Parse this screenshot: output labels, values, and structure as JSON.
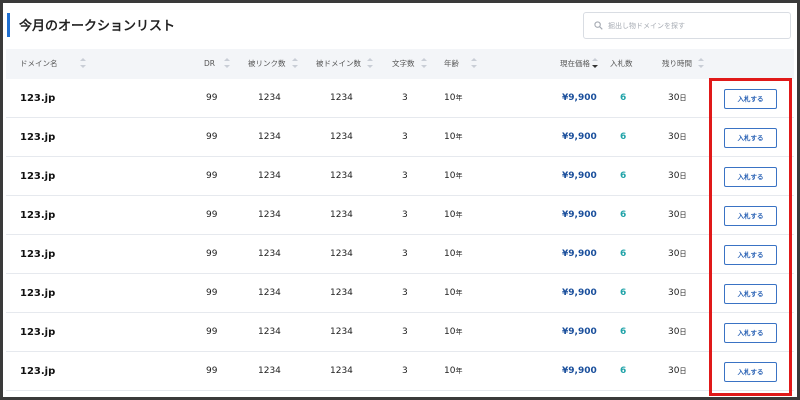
{
  "header": {
    "title": "今月のオークションリスト",
    "accent_color": "#1f6fd1"
  },
  "search": {
    "placeholder": "掘出し物ドメインを探す",
    "value": "",
    "icon": "search-icon"
  },
  "table": {
    "columns": [
      {
        "key": "domain",
        "label": "ドメイン名",
        "sortable": true
      },
      {
        "key": "dr",
        "label": "DR",
        "sortable": true
      },
      {
        "key": "backlinks",
        "label": "被リンク数",
        "sortable": true
      },
      {
        "key": "ref_domains",
        "label": "被ドメイン数",
        "sortable": true
      },
      {
        "key": "chars",
        "label": "文字数",
        "sortable": true
      },
      {
        "key": "age",
        "label": "年齢",
        "sortable": true
      },
      {
        "key": "price",
        "label": "現在価格",
        "sortable": true,
        "sorted": "desc"
      },
      {
        "key": "bids",
        "label": "入札数",
        "sortable": false
      },
      {
        "key": "remaining",
        "label": "残り時間",
        "sortable": true
      }
    ],
    "rows": [
      {
        "domain": "123.jp",
        "dr": "99",
        "backlinks": "1234",
        "ref_domains": "1234",
        "chars": "3",
        "age": "10",
        "age_unit": "年",
        "price": "¥9,900",
        "bids": "6",
        "remaining": "30",
        "remaining_unit": "日",
        "action": "入札する"
      },
      {
        "domain": "123.jp",
        "dr": "99",
        "backlinks": "1234",
        "ref_domains": "1234",
        "chars": "3",
        "age": "10",
        "age_unit": "年",
        "price": "¥9,900",
        "bids": "6",
        "remaining": "30",
        "remaining_unit": "日",
        "action": "入札する"
      },
      {
        "domain": "123.jp",
        "dr": "99",
        "backlinks": "1234",
        "ref_domains": "1234",
        "chars": "3",
        "age": "10",
        "age_unit": "年",
        "price": "¥9,900",
        "bids": "6",
        "remaining": "30",
        "remaining_unit": "日",
        "action": "入札する"
      },
      {
        "domain": "123.jp",
        "dr": "99",
        "backlinks": "1234",
        "ref_domains": "1234",
        "chars": "3",
        "age": "10",
        "age_unit": "年",
        "price": "¥9,900",
        "bids": "6",
        "remaining": "30",
        "remaining_unit": "日",
        "action": "入札する"
      },
      {
        "domain": "123.jp",
        "dr": "99",
        "backlinks": "1234",
        "ref_domains": "1234",
        "chars": "3",
        "age": "10",
        "age_unit": "年",
        "price": "¥9,900",
        "bids": "6",
        "remaining": "30",
        "remaining_unit": "日",
        "action": "入札する"
      },
      {
        "domain": "123.jp",
        "dr": "99",
        "backlinks": "1234",
        "ref_domains": "1234",
        "chars": "3",
        "age": "10",
        "age_unit": "年",
        "price": "¥9,900",
        "bids": "6",
        "remaining": "30",
        "remaining_unit": "日",
        "action": "入札する"
      },
      {
        "domain": "123.jp",
        "dr": "99",
        "backlinks": "1234",
        "ref_domains": "1234",
        "chars": "3",
        "age": "10",
        "age_unit": "年",
        "price": "¥9,900",
        "bids": "6",
        "remaining": "30",
        "remaining_unit": "日",
        "action": "入札する"
      },
      {
        "domain": "123.jp",
        "dr": "99",
        "backlinks": "1234",
        "ref_domains": "1234",
        "chars": "3",
        "age": "10",
        "age_unit": "年",
        "price": "¥9,900",
        "bids": "6",
        "remaining": "30",
        "remaining_unit": "日",
        "action": "入札する"
      }
    ]
  },
  "colors": {
    "price": "#1a4f9c",
    "bids": "#20a3a8",
    "button_border": "#3a73c4",
    "highlight": "#e01919",
    "header_bg": "#f3f5f8"
  }
}
